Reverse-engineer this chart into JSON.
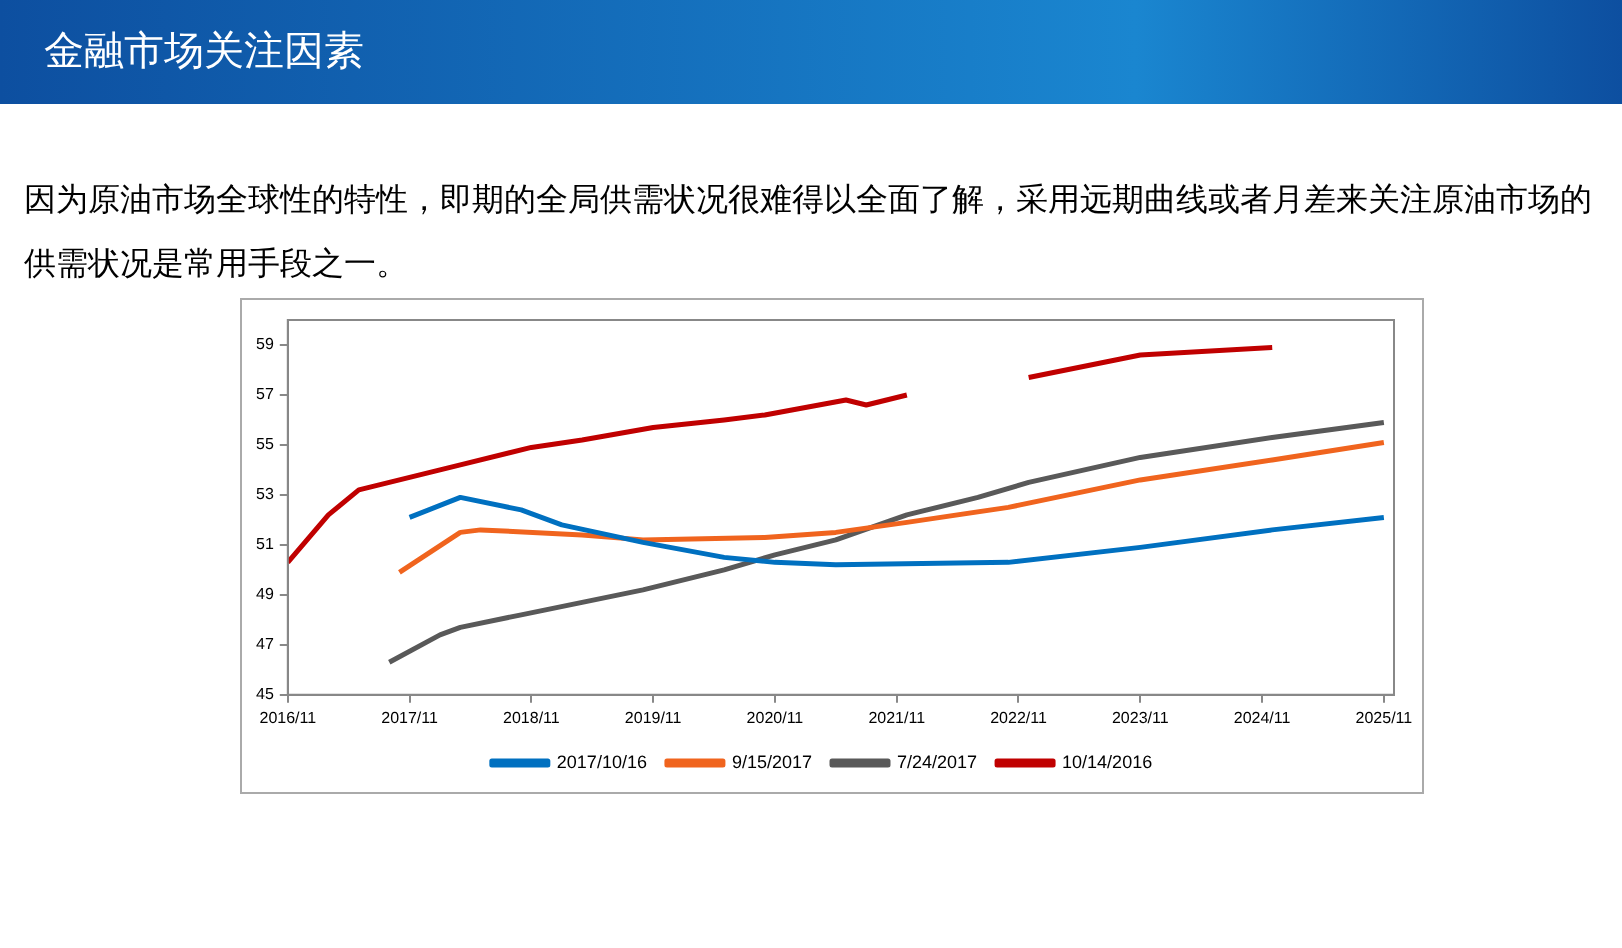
{
  "chart_data": {
    "type": "line",
    "title": "金融市场关注因素",
    "subtitle": "因为原油市场全球性的特性，即期的全局供需状况很难得以全面了解，采用远期曲线或者月差来关注原油市场的供需状况是常用手段之一。",
    "series": [
      {
        "name": "2017/10/16",
        "color": "#0070c0",
        "x": [
          "2017-11",
          "2018-04",
          "2018-10",
          "2019-02",
          "2019-10",
          "2020-06",
          "2020-11",
          "2021-05",
          "2022-10",
          "2023-11",
          "2024-12",
          "2025-11"
        ],
        "values": [
          52.1,
          52.9,
          52.4,
          51.8,
          51.1,
          50.5,
          50.3,
          50.2,
          50.3,
          50.9,
          51.6,
          52.1
        ]
      },
      {
        "name": "9/15/2017",
        "color": "#f0641e",
        "x": [
          "2017-10",
          "2018-01",
          "2018-04",
          "2018-06",
          "2019-04",
          "2019-10",
          "2020-10",
          "2021-05",
          "2021-12",
          "2022-10",
          "2023-11",
          "2024-12",
          "2025-11"
        ],
        "values": [
          49.9,
          50.7,
          51.5,
          51.6,
          51.4,
          51.2,
          51.3,
          51.5,
          51.9,
          52.5,
          53.6,
          54.4,
          55.1
        ]
      },
      {
        "name": "7/24/2017",
        "color": "#595959",
        "x": [
          "2017-09",
          "2018-02",
          "2018-04",
          "2018-10",
          "2019-04",
          "2019-10",
          "2020-06",
          "2020-11",
          "2021-05",
          "2021-12",
          "2022-07",
          "2022-12",
          "2023-11",
          "2024-12",
          "2025-11"
        ],
        "values": [
          46.3,
          47.4,
          47.7,
          48.2,
          48.7,
          49.2,
          50.0,
          50.6,
          51.2,
          52.2,
          52.9,
          53.5,
          54.5,
          55.3,
          55.9
        ]
      },
      {
        "name": "10/14/2016",
        "color": "#c00000",
        "x": [
          "2016-11",
          "2017-03",
          "2017-06",
          "2017-11",
          "2018-04",
          "2018-11",
          "2019-04",
          "2019-11",
          "2020-06",
          "2020-10",
          "2021-06",
          "2021-08",
          "2021-12",
          "2022-06",
          "2022-12",
          "2023-11",
          "2024-12"
        ],
        "values": [
          50.3,
          52.2,
          53.2,
          53.7,
          54.2,
          54.9,
          55.2,
          55.7,
          56.0,
          56.2,
          56.8,
          56.6,
          57.0,
          null,
          57.7,
          58.6,
          58.9
        ]
      }
    ],
    "xlim": [
      "2016-11",
      "2025-12"
    ],
    "xticks": [
      {
        "value": "2016-11",
        "label": "2016/11"
      },
      {
        "value": "2017-11",
        "label": "2017/11"
      },
      {
        "value": "2018-11",
        "label": "2018/11"
      },
      {
        "value": "2019-11",
        "label": "2019/11"
      },
      {
        "value": "2020-11",
        "label": "2020/11"
      },
      {
        "value": "2021-11",
        "label": "2021/11"
      },
      {
        "value": "2022-11",
        "label": "2022/11"
      },
      {
        "value": "2023-11",
        "label": "2023/11"
      },
      {
        "value": "2024-11",
        "label": "2024/11"
      },
      {
        "value": "2025-11",
        "label": "2025/11"
      }
    ],
    "ylim": [
      45,
      60
    ],
    "yticks": [
      45,
      47,
      49,
      51,
      53,
      55,
      57,
      59
    ],
    "grid": false,
    "legend": "bottom",
    "marker": "none",
    "line_style": "solid"
  }
}
